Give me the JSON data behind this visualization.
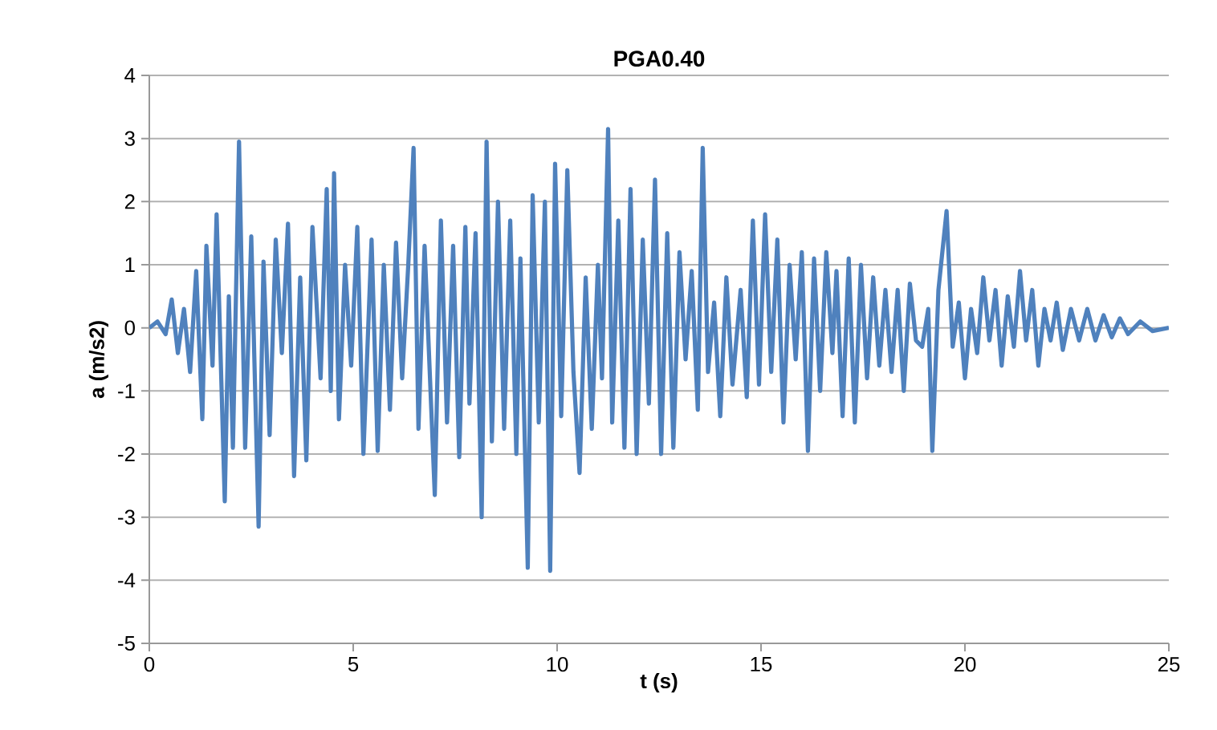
{
  "chart_data": {
    "type": "line",
    "title": "PGA0.40",
    "xlabel": "t (s)",
    "ylabel": "a (m/s2)",
    "x": [
      0,
      0.2,
      0.4,
      0.55,
      0.7,
      0.85,
      1.0,
      1.15,
      1.3,
      1.4,
      1.55,
      1.65,
      1.85,
      1.95,
      2.05,
      2.2,
      2.35,
      2.5,
      2.68,
      2.8,
      2.95,
      3.1,
      3.25,
      3.4,
      3.55,
      3.7,
      3.85,
      4.0,
      4.2,
      4.35,
      4.45,
      4.53,
      4.65,
      4.8,
      4.95,
      5.1,
      5.25,
      5.45,
      5.6,
      5.75,
      5.9,
      6.05,
      6.2,
      6.35,
      6.48,
      6.6,
      6.75,
      7.0,
      7.15,
      7.3,
      7.45,
      7.6,
      7.75,
      7.85,
      8.0,
      8.15,
      8.27,
      8.4,
      8.55,
      8.7,
      8.85,
      9.0,
      9.1,
      9.28,
      9.4,
      9.55,
      9.7,
      9.83,
      9.95,
      10.1,
      10.25,
      10.4,
      10.55,
      10.7,
      10.85,
      11.0,
      11.1,
      11.25,
      11.35,
      11.5,
      11.65,
      11.8,
      11.95,
      12.1,
      12.25,
      12.4,
      12.55,
      12.7,
      12.85,
      13.0,
      13.15,
      13.3,
      13.45,
      13.57,
      13.7,
      13.85,
      14.0,
      14.15,
      14.3,
      14.5,
      14.65,
      14.8,
      14.95,
      15.1,
      15.25,
      15.4,
      15.55,
      15.7,
      15.85,
      16.0,
      16.15,
      16.3,
      16.45,
      16.6,
      16.75,
      16.85,
      17.0,
      17.15,
      17.3,
      17.45,
      17.6,
      17.75,
      17.9,
      18.05,
      18.2,
      18.35,
      18.5,
      18.65,
      18.8,
      18.95,
      19.1,
      19.2,
      19.35,
      19.55,
      19.7,
      19.85,
      20.0,
      20.15,
      20.3,
      20.45,
      20.6,
      20.75,
      20.9,
      21.05,
      21.2,
      21.35,
      21.5,
      21.65,
      21.8,
      21.95,
      22.1,
      22.25,
      22.4,
      22.6,
      22.8,
      23.0,
      23.2,
      23.4,
      23.6,
      23.8,
      24.0,
      24.3,
      24.6,
      25
    ],
    "series": [
      {
        "color": "#4f81bd",
        "values": [
          0,
          0.1,
          -0.1,
          0.45,
          -0.4,
          0.3,
          -0.7,
          0.9,
          -1.45,
          1.3,
          -0.6,
          1.8,
          -2.75,
          0.5,
          -1.9,
          2.95,
          -1.9,
          1.45,
          -3.15,
          1.05,
          -1.7,
          1.4,
          -0.4,
          1.65,
          -2.35,
          0.8,
          -2.1,
          1.6,
          -0.8,
          2.2,
          -1.0,
          2.45,
          -1.45,
          1.0,
          -0.6,
          1.6,
          -2.0,
          1.4,
          -1.95,
          1.0,
          -1.3,
          1.35,
          -0.8,
          1.0,
          2.85,
          -1.6,
          1.3,
          -2.65,
          1.7,
          -1.5,
          1.3,
          -2.05,
          1.6,
          -1.2,
          1.5,
          -3.0,
          2.95,
          -1.8,
          2.0,
          -1.6,
          1.7,
          -2.0,
          1.1,
          -3.8,
          2.1,
          -1.5,
          2.0,
          -3.85,
          2.6,
          -1.4,
          2.5,
          -0.7,
          -2.3,
          0.8,
          -1.6,
          1.0,
          -0.8,
          3.15,
          -1.5,
          1.7,
          -1.9,
          2.2,
          -2.0,
          1.4,
          -1.2,
          2.35,
          -2.0,
          1.5,
          -1.9,
          1.2,
          -0.5,
          0.9,
          -1.3,
          2.85,
          -0.7,
          0.4,
          -1.4,
          0.8,
          -0.9,
          0.6,
          -1.1,
          1.7,
          -0.9,
          1.8,
          -0.7,
          1.4,
          -1.5,
          1.0,
          -0.5,
          1.2,
          -1.95,
          1.1,
          -1.0,
          1.2,
          -0.4,
          0.9,
          -1.4,
          1.1,
          -1.5,
          1.0,
          -0.8,
          0.8,
          -0.6,
          0.6,
          -0.7,
          0.6,
          -1.0,
          0.7,
          -0.2,
          -0.3,
          0.3,
          -1.95,
          0.6,
          1.85,
          -0.3,
          0.4,
          -0.8,
          0.3,
          -0.4,
          0.8,
          -0.2,
          0.6,
          -0.6,
          0.5,
          -0.3,
          0.9,
          -0.2,
          0.6,
          -0.6,
          0.3,
          -0.2,
          0.4,
          -0.35,
          0.3,
          -0.2,
          0.3,
          -0.2,
          0.2,
          -0.15,
          0.15,
          -0.1,
          0.1,
          -0.05,
          0
        ]
      }
    ],
    "xlim": [
      0,
      25
    ],
    "xticks": [
      0,
      5,
      10,
      15,
      20,
      25
    ],
    "ylim": [
      -5,
      4
    ],
    "yticks": [
      -5,
      -4,
      -3,
      -2,
      -1,
      0,
      1,
      2,
      3,
      4
    ],
    "grid": "y",
    "legend": false,
    "marker": "none",
    "line_style": "solid"
  }
}
